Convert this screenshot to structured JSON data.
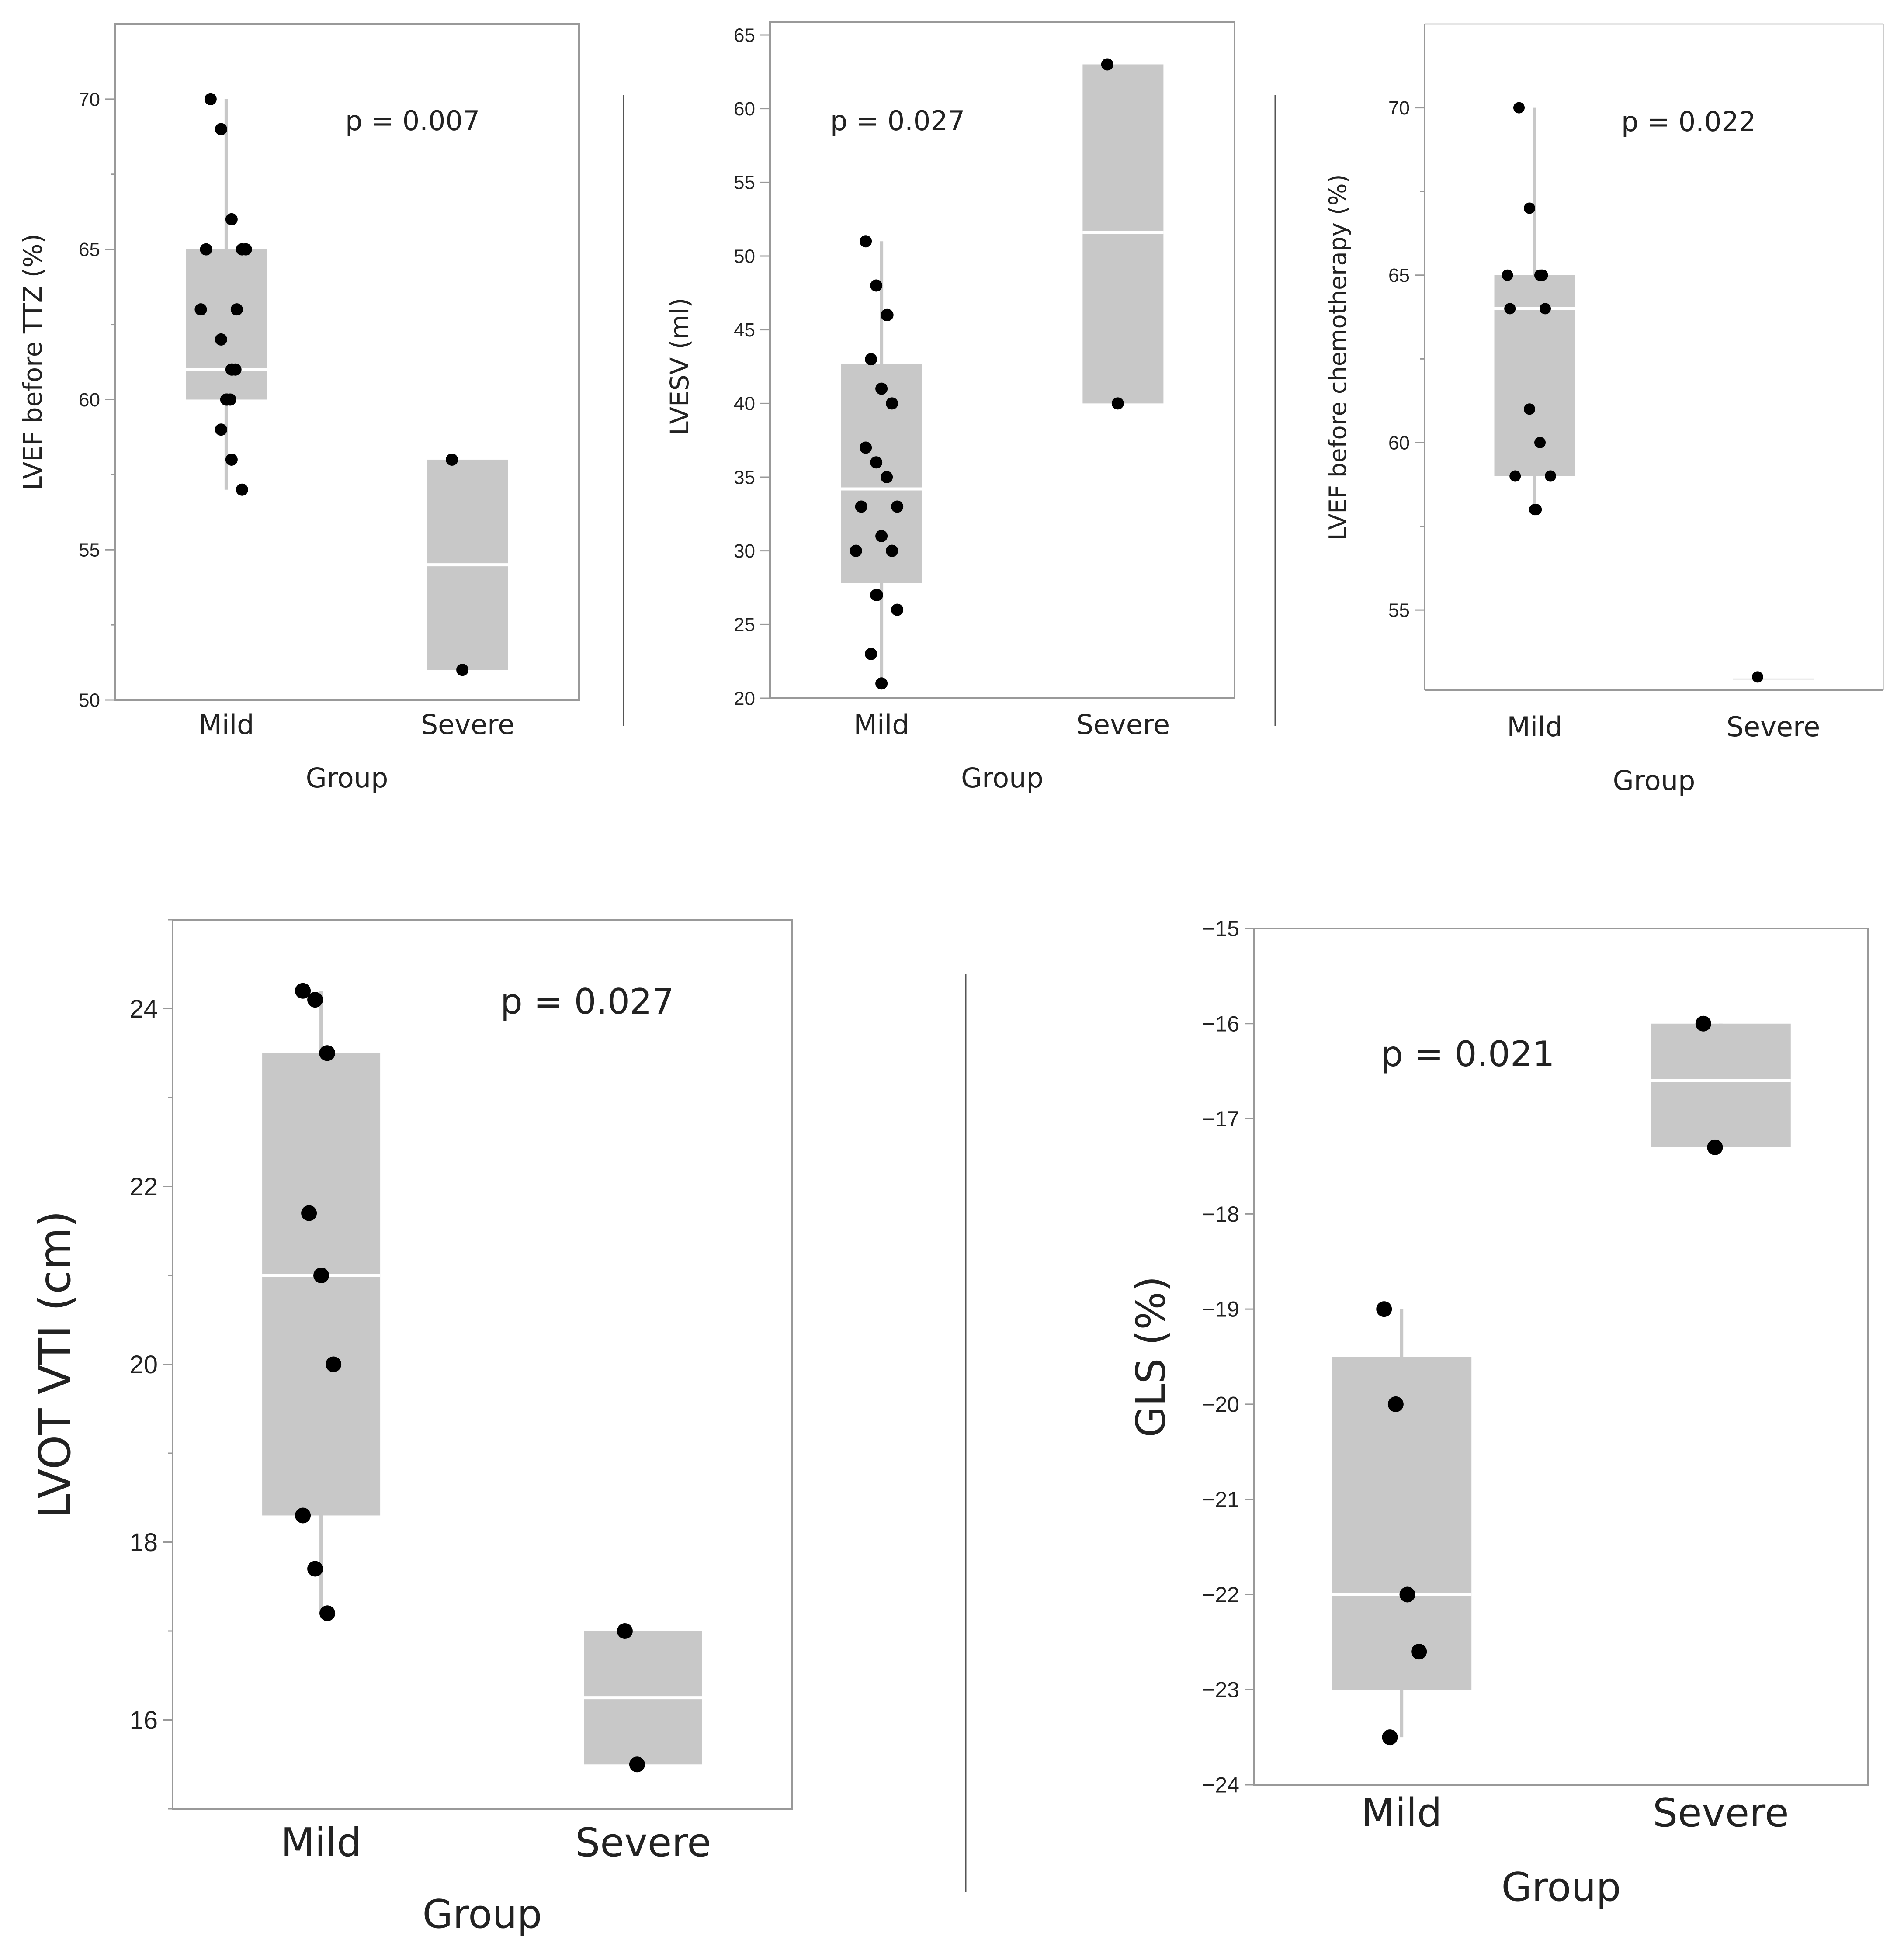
{
  "colors": {
    "box_fill": "#c8c8c8",
    "median_line": "#ffffff",
    "whisker": "#c8c8c8",
    "point": "#000000",
    "frame": "#999999",
    "divider": "#555555",
    "text": "#222222"
  },
  "chart_data": [
    {
      "type": "box",
      "title": "",
      "xlabel": "Group",
      "ylabel": "LVEF before TTZ (%)",
      "categories": [
        "Mild",
        "Severe"
      ],
      "ylim": [
        50,
        72.5
      ],
      "yticks": [
        50,
        55,
        60,
        65,
        70
      ],
      "minor_ticks": [
        52.5,
        57.5,
        62.5,
        67.5
      ],
      "annotation": "p = 0.007",
      "groups": [
        {
          "name": "Mild",
          "q1": 60,
          "median": 61,
          "q3": 65,
          "whisker_low": 57,
          "whisker_high": 70,
          "points": [
            70,
            69,
            66,
            65,
            65,
            65,
            63,
            63,
            62,
            61,
            61,
            61,
            60,
            60,
            60,
            59,
            58,
            57
          ]
        },
        {
          "name": "Severe",
          "q1": 51,
          "median": 54.5,
          "q3": 58,
          "whisker_low": 51,
          "whisker_high": 58,
          "points": [
            58,
            51
          ]
        }
      ]
    },
    {
      "type": "box",
      "title": "",
      "xlabel": "Group",
      "ylabel": "LVESV (ml)",
      "categories": [
        "Mild",
        "Severe"
      ],
      "ylim": [
        20,
        65
      ],
      "yticks": [
        20,
        25,
        30,
        35,
        40,
        45,
        50,
        55,
        60,
        65
      ],
      "minor_ticks": [],
      "annotation": "p = 0.027",
      "groups": [
        {
          "name": "Mild",
          "q1": 27.8,
          "median": 34.2,
          "q3": 42.7,
          "whisker_low": 21,
          "whisker_high": 51,
          "points": [
            51,
            48,
            46,
            46,
            43,
            41,
            40,
            37,
            36,
            35,
            33,
            33,
            31,
            30,
            30,
            27,
            27,
            26,
            23,
            21
          ]
        },
        {
          "name": "Severe",
          "q1": 40,
          "median": 51.6,
          "q3": 63,
          "whisker_low": 40,
          "whisker_high": 63,
          "points": [
            63,
            40
          ]
        }
      ]
    },
    {
      "type": "box",
      "title": "",
      "xlabel": "Group",
      "ylabel": "LVEF before chemotherapy (%)",
      "categories": [
        "Mild",
        "Severe"
      ],
      "ylim": [
        52.6,
        72.5
      ],
      "yticks": [
        55,
        60,
        65,
        70
      ],
      "minor_ticks": [
        57.5,
        62.5,
        67.5
      ],
      "annotation": "p = 0.022",
      "groups": [
        {
          "name": "Mild",
          "q1": 59,
          "median": 64,
          "q3": 65,
          "whisker_low": 58,
          "whisker_high": 70,
          "points": [
            70,
            67,
            65,
            65,
            65,
            65,
            64,
            64,
            61,
            60,
            59,
            59,
            58,
            58
          ]
        },
        {
          "name": "Severe",
          "q1": 53,
          "median": 53,
          "q3": 53,
          "whisker_low": 53,
          "whisker_high": 53,
          "points": [
            53
          ]
        }
      ]
    },
    {
      "type": "box",
      "title": "",
      "xlabel": "Group",
      "ylabel": "LVOT VTI (cm)",
      "categories": [
        "Mild",
        "Severe"
      ],
      "ylim": [
        15,
        25
      ],
      "yticks": [
        16,
        18,
        20,
        22,
        24
      ],
      "minor_ticks": [
        15,
        17,
        19,
        21,
        23,
        25
      ],
      "annotation": "p = 0.027",
      "groups": [
        {
          "name": "Mild",
          "q1": 18.3,
          "median": 21,
          "q3": 23.5,
          "whisker_low": 17.2,
          "whisker_high": 24.2,
          "points": [
            24.2,
            24.1,
            23.5,
            23.5,
            21.7,
            21,
            20,
            18.3,
            17.7,
            17.2
          ]
        },
        {
          "name": "Severe",
          "q1": 15.5,
          "median": 16.25,
          "q3": 17,
          "whisker_low": 15.5,
          "whisker_high": 17,
          "points": [
            17,
            15.5
          ]
        }
      ]
    },
    {
      "type": "box",
      "title": "",
      "xlabel": "Group",
      "ylabel": "GLS (%)",
      "categories": [
        "Mild",
        "Severe"
      ],
      "ylim": [
        -24,
        -15
      ],
      "yticks": [
        -24,
        -23,
        -22,
        -21,
        -20,
        -19,
        -18,
        -17,
        -16,
        -15
      ],
      "minor_ticks": [],
      "annotation": "p = 0.021",
      "groups": [
        {
          "name": "Mild",
          "q1": -23,
          "median": -22,
          "q3": -19.5,
          "whisker_low": -23.5,
          "whisker_high": -19,
          "points": [
            -19,
            -20,
            -22,
            -22.6,
            -23.5
          ]
        },
        {
          "name": "Severe",
          "q1": -17.3,
          "median": -16.6,
          "q3": -16,
          "whisker_low": -17.3,
          "whisker_high": -16,
          "points": [
            -16,
            -17.3
          ]
        }
      ]
    }
  ]
}
